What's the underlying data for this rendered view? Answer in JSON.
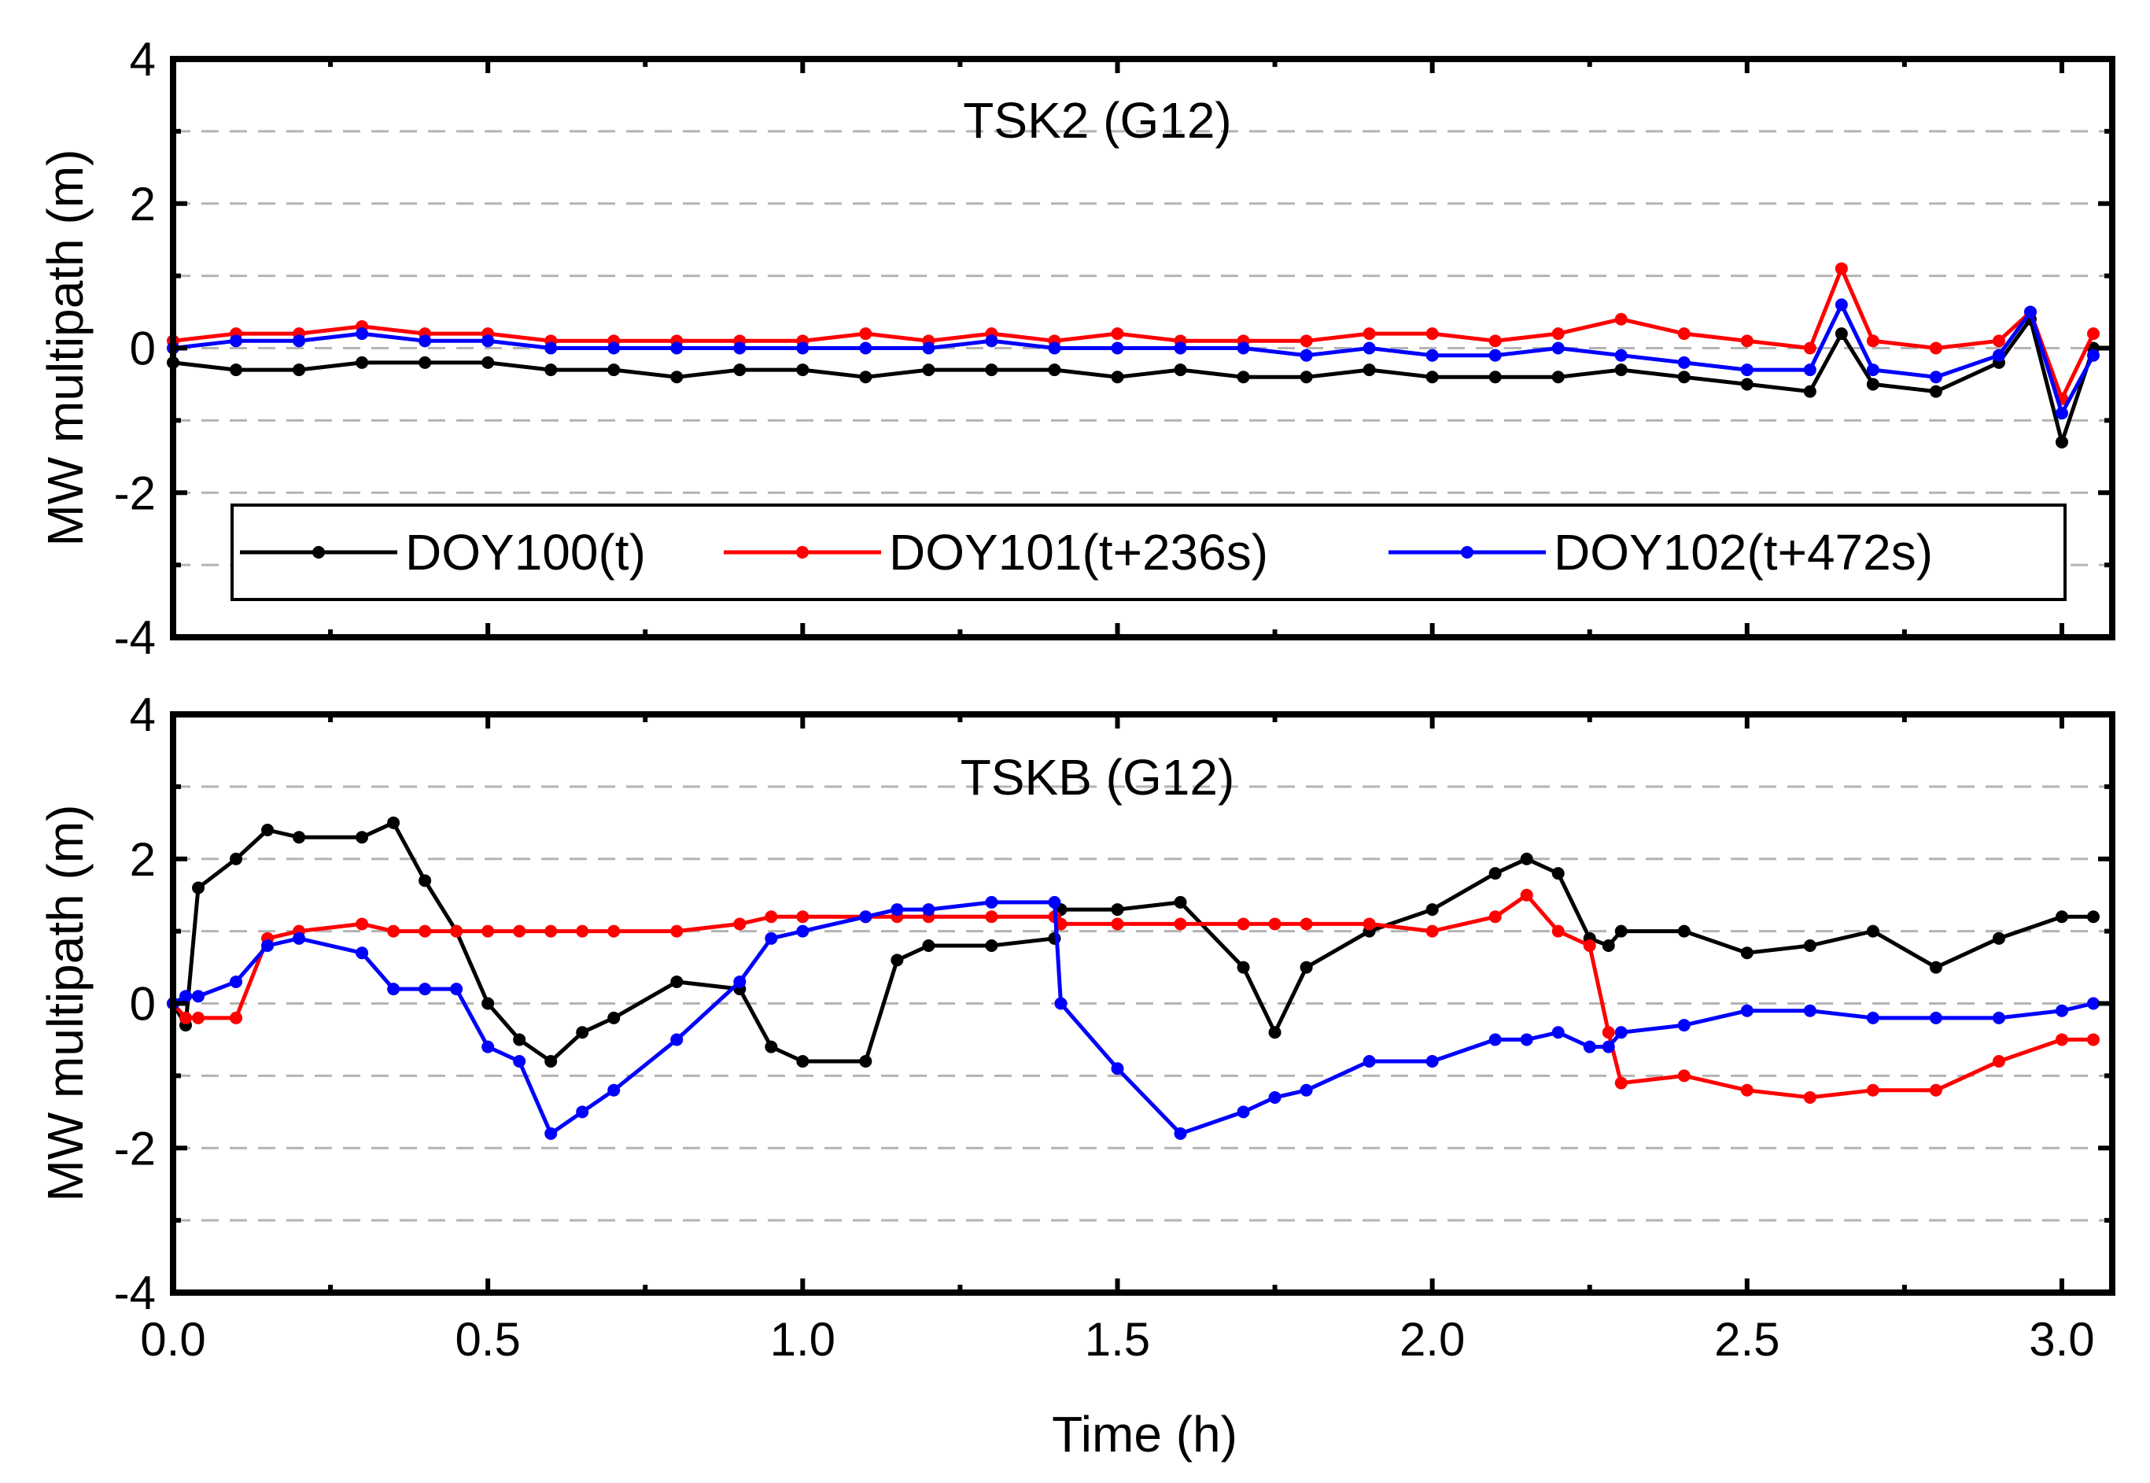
{
  "chart_data": [
    {
      "type": "line",
      "title": "TSK2 (G12)",
      "xlabel": "Time (h)",
      "ylabel": "MW multipath (m)",
      "xlim": [
        0.0,
        3.08
      ],
      "ylim": [
        -4,
        4
      ],
      "x_ticks": [
        0.0,
        0.5,
        1.0,
        1.5,
        2.0,
        2.5,
        3.0
      ],
      "x_tick_labels": [
        "0.0",
        "0.5",
        "1.0",
        "1.5",
        "2.0",
        "2.5",
        "3.0"
      ],
      "y_ticks": [
        -4,
        -2,
        0,
        2,
        4
      ],
      "y_tick_labels": [
        "-4",
        "-2",
        "0",
        "2",
        "4"
      ],
      "grid": "horizontal dashed every 1 m",
      "legend": {
        "location": "lower-center",
        "entries": [
          "DOY100(t)",
          "DOY101(t+236s)",
          "DOY102(t+472s)"
        ]
      },
      "x": [
        0.0,
        0.1,
        0.2,
        0.3,
        0.4,
        0.5,
        0.6,
        0.7,
        0.8,
        0.9,
        1.0,
        1.1,
        1.2,
        1.3,
        1.4,
        1.5,
        1.6,
        1.7,
        1.8,
        1.9,
        2.0,
        2.1,
        2.2,
        2.3,
        2.4,
        2.5,
        2.6,
        2.65,
        2.7,
        2.8,
        2.9,
        2.95,
        3.0,
        3.05
      ],
      "series": [
        {
          "name": "DOY100(t)",
          "color": "#000000",
          "values": [
            -0.2,
            -0.3,
            -0.3,
            -0.2,
            -0.2,
            -0.2,
            -0.3,
            -0.3,
            -0.4,
            -0.3,
            -0.3,
            -0.4,
            -0.3,
            -0.3,
            -0.3,
            -0.4,
            -0.3,
            -0.4,
            -0.4,
            -0.3,
            -0.4,
            -0.4,
            -0.4,
            -0.3,
            -0.4,
            -0.5,
            -0.6,
            0.2,
            -0.5,
            -0.6,
            -0.2,
            0.4,
            -1.3,
            0.0
          ]
        },
        {
          "name": "DOY101(t+236s)",
          "color": "#ff0000",
          "values": [
            0.1,
            0.2,
            0.2,
            0.3,
            0.2,
            0.2,
            0.1,
            0.1,
            0.1,
            0.1,
            0.1,
            0.2,
            0.1,
            0.2,
            0.1,
            0.2,
            0.1,
            0.1,
            0.1,
            0.2,
            0.2,
            0.1,
            0.2,
            0.4,
            0.2,
            0.1,
            0.0,
            1.1,
            0.1,
            0.0,
            0.1,
            0.5,
            -0.7,
            0.2
          ]
        },
        {
          "name": "DOY102(t+472s)",
          "color": "#0000ff",
          "values": [
            0.0,
            0.1,
            0.1,
            0.2,
            0.1,
            0.1,
            0.0,
            0.0,
            0.0,
            0.0,
            0.0,
            0.0,
            0.0,
            0.1,
            0.0,
            0.0,
            0.0,
            0.0,
            -0.1,
            0.0,
            -0.1,
            -0.1,
            0.0,
            -0.1,
            -0.2,
            -0.3,
            -0.3,
            0.6,
            -0.3,
            -0.4,
            -0.1,
            0.5,
            -0.9,
            -0.1
          ]
        }
      ]
    },
    {
      "type": "line",
      "title": "TSKB (G12)",
      "xlabel": "Time (h)",
      "ylabel": "MW multipath (m)",
      "xlim": [
        0.0,
        3.08
      ],
      "ylim": [
        -4,
        4
      ],
      "x_ticks": [
        0.0,
        0.5,
        1.0,
        1.5,
        2.0,
        2.5,
        3.0
      ],
      "x_tick_labels": [
        "0.0",
        "0.5",
        "1.0",
        "1.5",
        "2.0",
        "2.5",
        "3.0"
      ],
      "y_ticks": [
        -4,
        -2,
        0,
        2,
        4
      ],
      "y_tick_labels": [
        "-4",
        "-2",
        "0",
        "2",
        "4"
      ],
      "grid": "horizontal dashed every 1 m",
      "x": [
        0.0,
        0.02,
        0.04,
        0.1,
        0.15,
        0.2,
        0.3,
        0.35,
        0.4,
        0.45,
        0.5,
        0.55,
        0.6,
        0.65,
        0.7,
        0.8,
        0.9,
        0.95,
        1.0,
        1.1,
        1.15,
        1.2,
        1.3,
        1.4,
        1.41,
        1.5,
        1.6,
        1.7,
        1.75,
        1.8,
        1.9,
        2.0,
        2.1,
        2.15,
        2.2,
        2.25,
        2.28,
        2.3,
        2.4,
        2.5,
        2.6,
        2.7,
        2.8,
        2.9,
        3.0,
        3.05
      ],
      "series": [
        {
          "name": "DOY100(t)",
          "color": "#000000",
          "values": [
            0.0,
            -0.3,
            1.6,
            2.0,
            2.4,
            2.3,
            2.3,
            2.5,
            1.7,
            1.0,
            0.0,
            -0.5,
            -0.8,
            -0.4,
            -0.2,
            0.3,
            0.2,
            -0.6,
            -0.8,
            -0.8,
            0.6,
            0.8,
            0.8,
            0.9,
            1.3,
            1.3,
            1.4,
            0.5,
            -0.4,
            0.5,
            1.0,
            1.3,
            1.8,
            2.0,
            1.8,
            0.9,
            0.8,
            1.0,
            1.0,
            0.7,
            0.8,
            1.0,
            0.5,
            0.9,
            1.2,
            1.2
          ]
        },
        {
          "name": "DOY101(t+236s)",
          "color": "#ff0000",
          "values": [
            0.0,
            -0.2,
            -0.2,
            -0.2,
            0.9,
            1.0,
            1.1,
            1.0,
            1.0,
            1.0,
            1.0,
            1.0,
            1.0,
            1.0,
            1.0,
            1.0,
            1.1,
            1.2,
            1.2,
            1.2,
            1.2,
            1.2,
            1.2,
            1.2,
            1.1,
            1.1,
            1.1,
            1.1,
            1.1,
            1.1,
            1.1,
            1.0,
            1.2,
            1.5,
            1.0,
            0.8,
            -0.4,
            -1.1,
            -1.0,
            -1.2,
            -1.3,
            -1.2,
            -1.2,
            -0.8,
            -0.5,
            -0.5
          ]
        },
        {
          "name": "DOY102(t+472s)",
          "color": "#0000ff",
          "values": [
            0.0,
            0.1,
            0.1,
            0.3,
            0.8,
            0.9,
            0.7,
            0.2,
            0.2,
            0.2,
            -0.6,
            -0.8,
            -1.8,
            -1.5,
            -1.2,
            -0.5,
            0.3,
            0.9,
            1.0,
            1.2,
            1.3,
            1.3,
            1.4,
            1.4,
            0.0,
            -0.9,
            -1.8,
            -1.5,
            -1.3,
            -1.2,
            -0.8,
            -0.8,
            -0.5,
            -0.5,
            -0.4,
            -0.6,
            -0.6,
            -0.4,
            -0.3,
            -0.1,
            -0.1,
            -0.2,
            -0.2,
            -0.2,
            -0.1,
            0.0
          ]
        }
      ]
    }
  ]
}
